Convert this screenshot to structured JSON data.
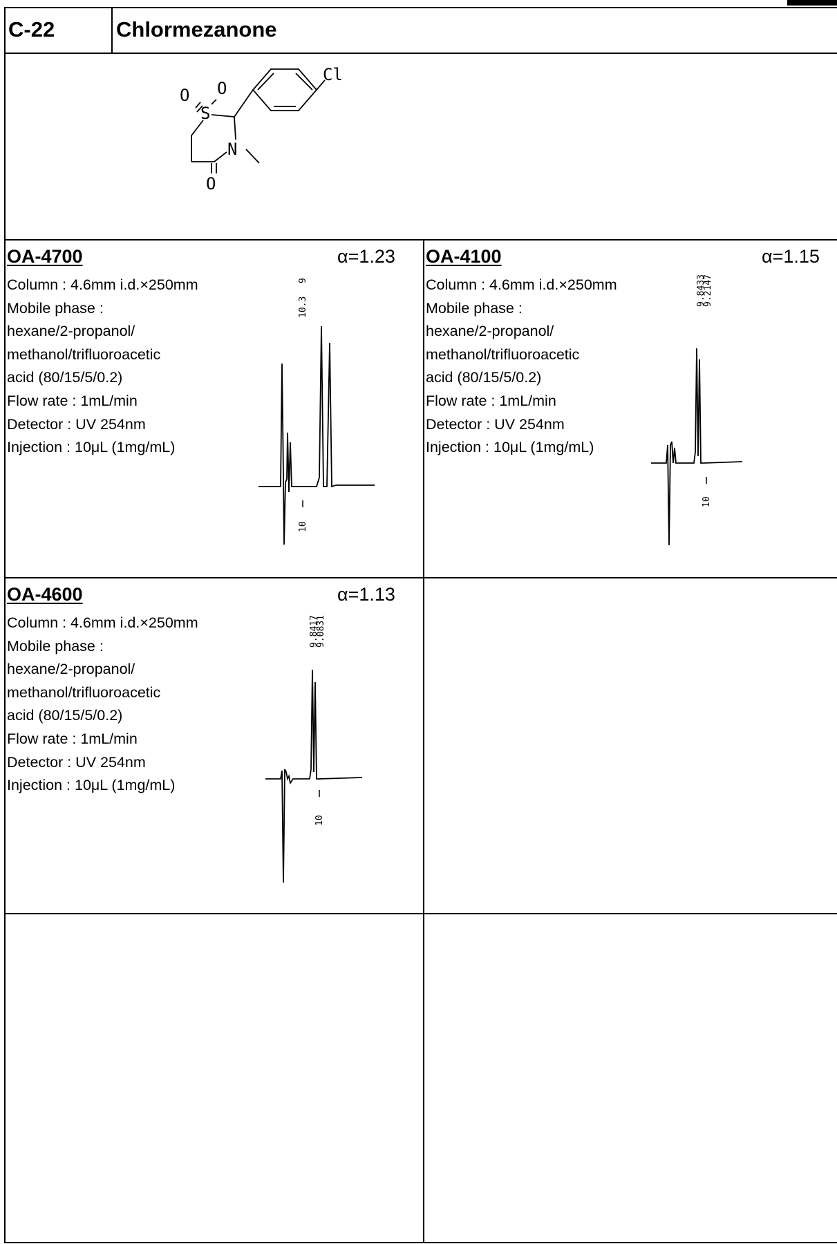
{
  "header": {
    "compound_id": "C-22",
    "compound_name": "Chlormezanone"
  },
  "structure": {
    "atoms": {
      "cl": "Cl",
      "o_left": "O",
      "o_right": "O",
      "s": "S",
      "n": "N",
      "o_carbonyl": "O"
    }
  },
  "panels": [
    {
      "column_name": "OA-4700",
      "alpha": "α=1.23",
      "conditions": [
        "Column : 4.6mm i.d.×250mm",
        "Mobile phase :",
        " hexane/2-propanol/",
        " methanol/trifluoroacetic",
        " acid (80/15/5/0.2)",
        "Flow rate : 1mL/min",
        "Detector : UV 254nm",
        "Injection : 10μL (1mg/mL)"
      ],
      "peak_labels": [
        "9",
        "10.3"
      ],
      "axis_label": "10"
    },
    {
      "column_name": "OA-4100",
      "alpha": "α=1.15",
      "conditions": [
        "Column : 4.6mm i.d.×250mm",
        "Mobile phase :",
        " hexane/2-propanol/",
        " methanol/trifluoroacetic",
        " acid (80/15/5/0.2)",
        "Flow rate : 1mL/min",
        "Detector : UV 254nm",
        "Injection : 10μL (1mg/mL)"
      ],
      "peak_labels": [
        "9.8433",
        "9.2147"
      ],
      "axis_label": "10"
    },
    {
      "column_name": "OA-4600",
      "alpha": "α=1.13",
      "conditions": [
        "Column : 4.6mm i.d.×250mm",
        "Mobile phase :",
        " hexane/2-propanol/",
        " methanol/trifluoroacetic",
        " acid (80/15/5/0.2)",
        "Flow rate : 1mL/min",
        "Detector : UV 254nm",
        "Injection : 10μL (1mg/mL)"
      ],
      "peak_labels": [
        "9.8417",
        "9.0831"
      ],
      "axis_label": "10"
    }
  ]
}
